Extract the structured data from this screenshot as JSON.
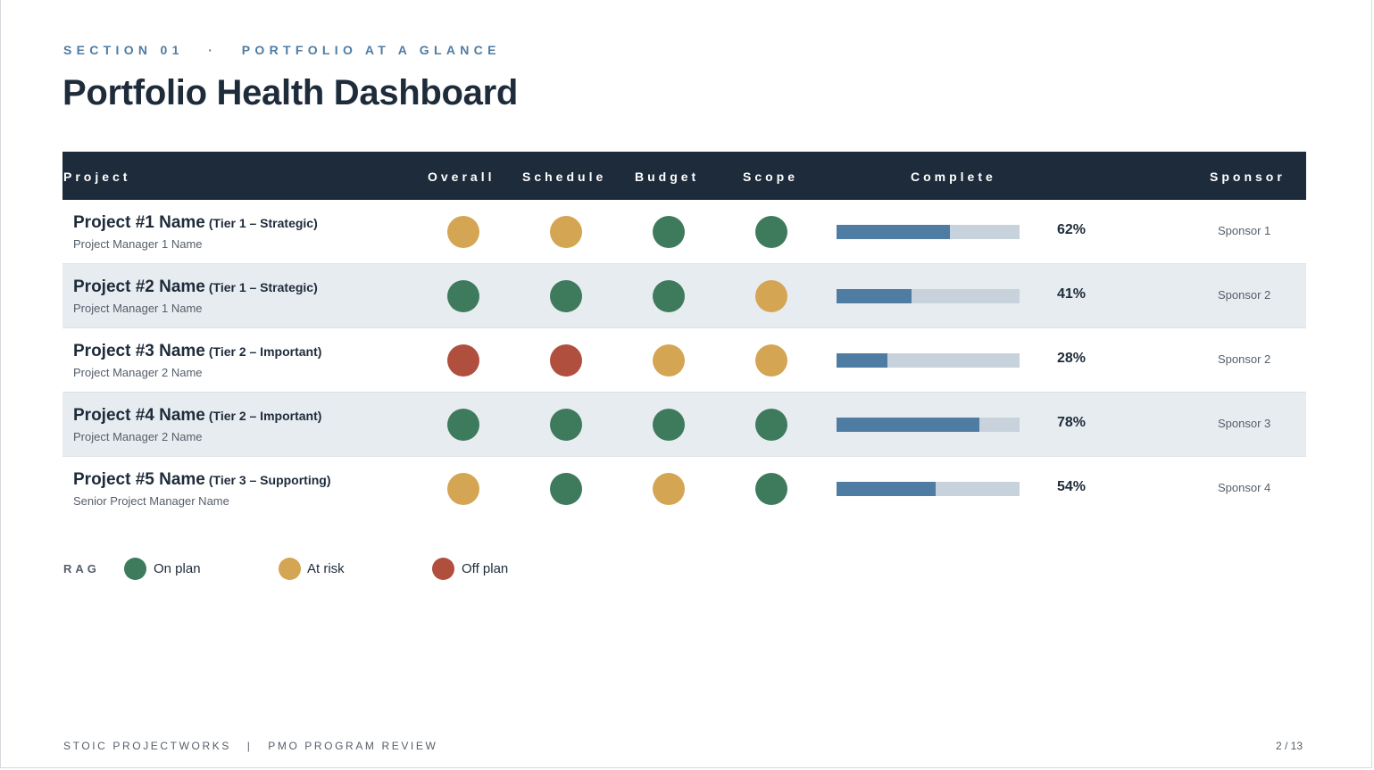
{
  "header": {
    "eyebrow": "SECTION 01   ·   PORTFOLIO AT A GLANCE",
    "title": "Portfolio Health Dashboard"
  },
  "table": {
    "columns": {
      "project": "Project",
      "overall": "Overall",
      "schedule": "Schedule",
      "budget": "Budget",
      "scope": "Scope",
      "complete": "Complete",
      "sponsor": "Sponsor"
    },
    "rows": [
      {
        "name": "Project #1 Name",
        "tier": "(Tier 1 – Strategic)",
        "manager": "Project Manager 1 Name",
        "overall": "amber",
        "schedule": "amber",
        "budget": "green",
        "scope": "green",
        "complete": 0.62,
        "complete_label": "62%",
        "sponsor": "Sponsor 1"
      },
      {
        "name": "Project #2 Name",
        "tier": "(Tier 1 – Strategic)",
        "manager": "Project Manager 1 Name",
        "overall": "green",
        "schedule": "green",
        "budget": "green",
        "scope": "amber",
        "complete": 0.41,
        "complete_label": "41%",
        "sponsor": "Sponsor 2"
      },
      {
        "name": "Project #3 Name",
        "tier": "(Tier 2 – Important)",
        "manager": "Project Manager 2 Name",
        "overall": "red",
        "schedule": "red",
        "budget": "amber",
        "scope": "amber",
        "complete": 0.28,
        "complete_label": "28%",
        "sponsor": "Sponsor 2"
      },
      {
        "name": "Project #4 Name",
        "tier": "(Tier 2 – Important)",
        "manager": "Project Manager 2 Name",
        "overall": "green",
        "schedule": "green",
        "budget": "green",
        "scope": "green",
        "complete": 0.78,
        "complete_label": "78%",
        "sponsor": "Sponsor 3"
      },
      {
        "name": "Project #5 Name",
        "tier": "(Tier 3 – Supporting)",
        "manager": "Senior Project Manager Name",
        "overall": "amber",
        "schedule": "green",
        "budget": "amber",
        "scope": "green",
        "complete": 0.54,
        "complete_label": "54%",
        "sponsor": "Sponsor 4"
      }
    ]
  },
  "legend": {
    "title": "RAG",
    "on_plan": "On plan",
    "at_risk": "At risk",
    "off_plan": "Off plan"
  },
  "colors": {
    "green": "#3e7a5c",
    "amber": "#d4a553",
    "red": "#b14f3e",
    "bar_fill": "#4f7ca3",
    "bar_track": "#c8d2dc",
    "header_bg": "#1e2b3a"
  },
  "footer": {
    "left": "STOIC PROJECTWORKS   |   PMO PROGRAM REVIEW",
    "page": "2 / 13"
  }
}
